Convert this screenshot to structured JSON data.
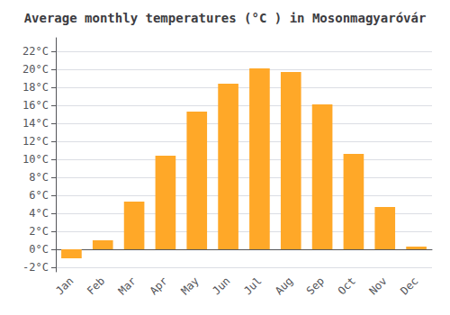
{
  "chart_data": {
    "type": "bar",
    "title": "Average monthly temperatures (°C ) in Mosonmagyaróvár",
    "categories": [
      "Jan",
      "Feb",
      "Mar",
      "Apr",
      "May",
      "Jun",
      "Jul",
      "Aug",
      "Sep",
      "Oct",
      "Nov",
      "Dec"
    ],
    "values": [
      -1.0,
      1.0,
      5.3,
      10.4,
      15.3,
      18.4,
      20.1,
      19.7,
      16.1,
      10.6,
      4.7,
      0.3
    ],
    "color": "#FFA828",
    "ylim": [
      -2.5,
      23.5
    ],
    "yticks": [
      {
        "value": -2,
        "label": "-2°C"
      },
      {
        "value": 0,
        "label": "0°C"
      },
      {
        "value": 2,
        "label": "2°C"
      },
      {
        "value": 4,
        "label": "4°C"
      },
      {
        "value": 6,
        "label": "6°C"
      },
      {
        "value": 8,
        "label": "8°C"
      },
      {
        "value": 10,
        "label": "10°C"
      },
      {
        "value": 12,
        "label": "12°C"
      },
      {
        "value": 14,
        "label": "14°C"
      },
      {
        "value": 16,
        "label": "16°C"
      },
      {
        "value": 18,
        "label": "18°C"
      },
      {
        "value": 20,
        "label": "20°C"
      },
      {
        "value": 22,
        "label": "22°C"
      }
    ],
    "grid": true
  }
}
